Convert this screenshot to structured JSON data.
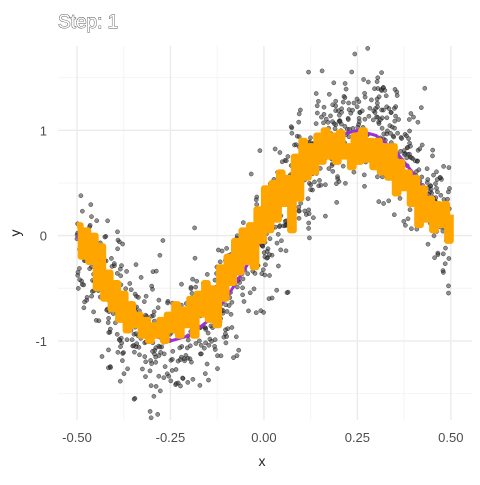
{
  "chart_data": {
    "type": "scatter",
    "title": "Step: 1",
    "xlabel": "x",
    "ylabel": "y",
    "xlim": [
      -0.5,
      0.5
    ],
    "ylim": [
      -1.75,
      1.8
    ],
    "x_ticks": [
      -0.5,
      -0.25,
      0.0,
      0.25,
      0.5
    ],
    "x_tick_labels": [
      "-0.50",
      "-0.25",
      "0.00",
      "0.25",
      "0.50"
    ],
    "y_ticks": [
      -1,
      0,
      1
    ],
    "y_tick_labels": [
      "-1",
      "0",
      "1"
    ],
    "grid": true,
    "colors": {
      "points": "#333333",
      "smooth_line": "#9b30d9",
      "step_fit": "#ffa500",
      "grid_major": "#ebebeb",
      "grid_minor": "#f4f4f4"
    },
    "scatter_model": {
      "n_points": 1000,
      "function": "sin(2*pi*x)",
      "noise_sd": 0.3,
      "x_range": [
        -0.5,
        0.5
      ]
    },
    "smooth_line": {
      "x": [
        -0.5,
        -0.45,
        -0.4,
        -0.35,
        -0.3,
        -0.25,
        -0.2,
        -0.15,
        -0.1,
        -0.05,
        0.0,
        0.05,
        0.1,
        0.15,
        0.2,
        0.25,
        0.3,
        0.35,
        0.4,
        0.45,
        0.5
      ],
      "y": [
        0.0,
        -0.31,
        -0.59,
        -0.81,
        -0.95,
        -1.0,
        -0.95,
        -0.81,
        -0.59,
        -0.31,
        0.0,
        0.31,
        0.59,
        0.81,
        0.95,
        1.0,
        0.95,
        0.81,
        0.59,
        0.31,
        0.0
      ]
    },
    "step_fit": {
      "x": [
        -0.5,
        -0.49,
        -0.48,
        -0.47,
        -0.46,
        -0.45,
        -0.44,
        -0.43,
        -0.42,
        -0.41,
        -0.4,
        -0.39,
        -0.38,
        -0.37,
        -0.36,
        -0.35,
        -0.34,
        -0.33,
        -0.32,
        -0.31,
        -0.3,
        -0.29,
        -0.28,
        -0.27,
        -0.26,
        -0.25,
        -0.24,
        -0.23,
        -0.22,
        -0.21,
        -0.2,
        -0.19,
        -0.18,
        -0.17,
        -0.16,
        -0.15,
        -0.14,
        -0.13,
        -0.12,
        -0.11,
        -0.1,
        -0.09,
        -0.08,
        -0.07,
        -0.06,
        -0.05,
        -0.04,
        -0.03,
        -0.02,
        -0.01,
        0.0,
        0.01,
        0.02,
        0.03,
        0.04,
        0.05,
        0.06,
        0.07,
        0.08,
        0.09,
        0.1,
        0.11,
        0.12,
        0.13,
        0.14,
        0.15,
        0.16,
        0.17,
        0.18,
        0.19,
        0.2,
        0.21,
        0.22,
        0.23,
        0.24,
        0.25,
        0.26,
        0.27,
        0.28,
        0.29,
        0.3,
        0.31,
        0.32,
        0.33,
        0.34,
        0.35,
        0.36,
        0.37,
        0.38,
        0.39,
        0.4,
        0.41,
        0.42,
        0.43,
        0.44,
        0.45,
        0.46,
        0.47,
        0.48,
        0.49,
        0.5
      ],
      "y": [
        0.1,
        -0.2,
        0.05,
        -0.25,
        0.0,
        -0.5,
        -0.1,
        -0.6,
        -0.35,
        -0.7,
        -0.45,
        -0.8,
        -0.55,
        -0.9,
        -0.65,
        -0.85,
        -0.75,
        -0.95,
        -0.8,
        -1.0,
        -0.85,
        -0.95,
        -0.8,
        -1.0,
        -0.75,
        -0.9,
        -0.65,
        -0.95,
        -0.7,
        -0.85,
        -0.6,
        -0.95,
        -0.55,
        -0.75,
        -0.45,
        -0.8,
        -0.5,
        -0.85,
        -0.3,
        -0.6,
        -0.2,
        -0.45,
        -0.05,
        -0.35,
        0.05,
        -0.25,
        0.1,
        -0.3,
        0.25,
        -0.05,
        0.45,
        0.05,
        0.5,
        0.15,
        0.6,
        0.3,
        0.55,
        0.05,
        0.75,
        0.35,
        0.9,
        0.55,
        0.85,
        0.6,
        0.95,
        0.7,
        1.0,
        0.75,
        0.95,
        0.7,
        0.98,
        0.75,
        0.85,
        0.65,
        0.95,
        0.7,
        1.0,
        0.72,
        0.9,
        0.65,
        0.9,
        0.6,
        0.85,
        0.55,
        0.85,
        0.4,
        0.7,
        0.45,
        0.6,
        0.3,
        0.55,
        0.1,
        0.45,
        0.15,
        0.35,
        0.05,
        0.3,
        0.1,
        0.3,
        -0.05,
        0.2
      ]
    }
  }
}
